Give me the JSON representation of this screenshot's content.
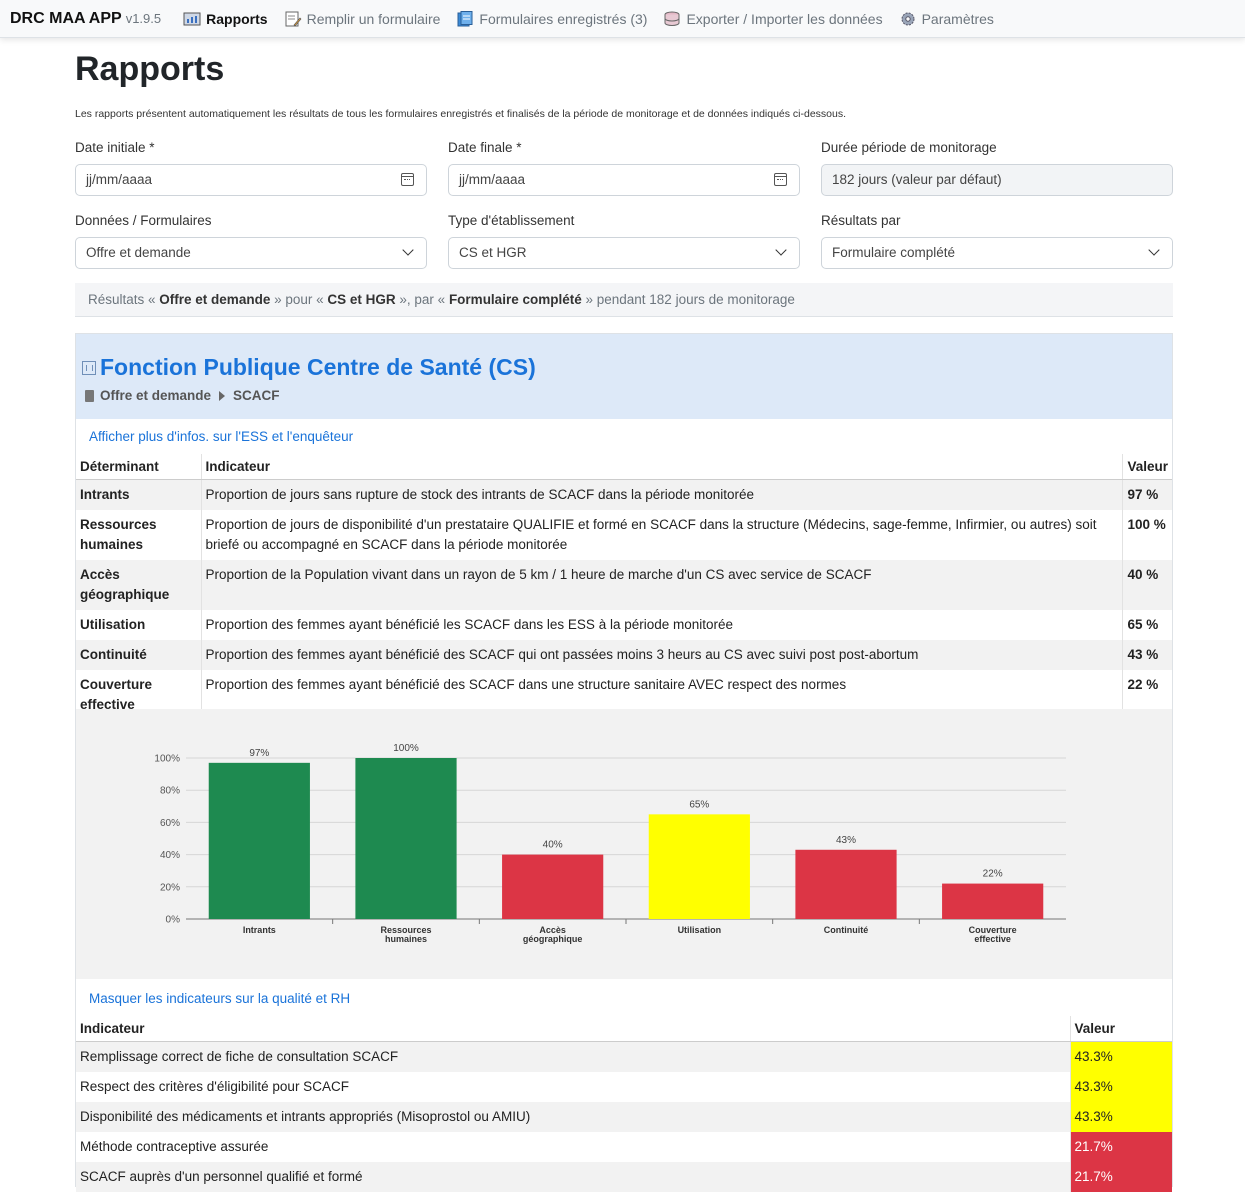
{
  "app": {
    "name": "DRC MAA APP",
    "version": "v1.9.5"
  },
  "nav": [
    {
      "label": "Rapports",
      "icon": "report-icon",
      "active": true
    },
    {
      "label": "Remplir un formulaire",
      "icon": "form-edit-icon",
      "active": false
    },
    {
      "label": "Formulaires enregistrés (3)",
      "icon": "saved-forms-icon",
      "active": false
    },
    {
      "label": "Exporter / Importer les données",
      "icon": "database-icon",
      "active": false
    },
    {
      "label": "Paramètres",
      "icon": "gear-icon",
      "active": false
    }
  ],
  "page": {
    "title": "Rapports",
    "intro": "Les rapports présentent automatiquement les résultats de tous les formulaires enregistrés et finalisés de la période de monitorage et de données indiqués ci-dessous."
  },
  "filters": {
    "date_start": {
      "label": "Date initiale *",
      "placeholder": "jj/mm/aaaa"
    },
    "date_end": {
      "label": "Date finale *",
      "placeholder": "jj/mm/aaaa"
    },
    "duration": {
      "label": "Durée période de monitorage",
      "value": "182 jours (valeur par défaut)"
    },
    "data": {
      "label": "Données / Formulaires",
      "value": "Offre et demande"
    },
    "type": {
      "label": "Type d'établissement",
      "value": "CS et HGR"
    },
    "results_by": {
      "label": "Résultats par",
      "value": "Formulaire complété"
    }
  },
  "summary": {
    "p1": "Résultats « ",
    "b1": "Offre et demande",
    "p2": " » pour « ",
    "b2": "CS et HGR",
    "p3": " », par « ",
    "b3": "Formulaire complété",
    "p4": " » pendant 182 jours de monitorage"
  },
  "panel": {
    "title": "Fonction Publique Centre de Santé (CS)",
    "breadcrumb_1": "Offre et demande",
    "breadcrumb_2": "SCACF",
    "more_info_link": "Afficher plus d'infos. sur l'ESS et l'enquêteur",
    "quality_link": "Masquer les indicateurs sur la qualité et RH"
  },
  "indicators": {
    "headers": {
      "det": "Déterminant",
      "ind": "Indicateur",
      "val": "Valeur"
    },
    "rows": [
      {
        "det": "Intrants",
        "ind": "Proportion de jours sans rupture de stock des intrants de SCACF dans la période monitorée",
        "val": "97 %"
      },
      {
        "det": "Ressources humaines",
        "ind": "Proportion de jours de disponibilité d'un prestataire QUALIFIE et formé en SCACF dans la structure (Médecins, sage-femme, Infirmier, ou autres) soit briefé ou accompagné en SCACF dans la période monitorée",
        "val": "100 %"
      },
      {
        "det": "Accès géographique",
        "ind": "Proportion de la Population vivant dans un rayon de 5 km / 1 heure de marche d'un CS avec service de SCACF",
        "val": "40 %"
      },
      {
        "det": "Utilisation",
        "ind": "Proportion des femmes ayant bénéficié les SCACF dans les ESS à la période monitorée",
        "val": "65 %"
      },
      {
        "det": "Continuité",
        "ind": "Proportion des femmes ayant bénéficié des SCACF qui ont passées moins 3 heurs au CS avec suivi post post-abortum",
        "val": "43 %"
      },
      {
        "det": "Couverture effective",
        "ind": "Proportion des femmes ayant bénéficié des SCACF dans une structure sanitaire AVEC respect des normes",
        "val": "22 %"
      }
    ]
  },
  "chart_data": {
    "type": "bar",
    "categories": [
      "Intrants",
      "Ressources humaines",
      "Accès géographique",
      "Utilisation",
      "Continuité",
      "Couverture effective"
    ],
    "category_lines": [
      [
        "Intrants"
      ],
      [
        "Ressources",
        "humaines"
      ],
      [
        "Accès",
        "géographique"
      ],
      [
        "Utilisation"
      ],
      [
        "Continuité"
      ],
      [
        "Couverture",
        "effective"
      ]
    ],
    "values": [
      97,
      100,
      40,
      65,
      43,
      22
    ],
    "data_labels": [
      "97%",
      "100%",
      "40%",
      "65%",
      "43%",
      "22%"
    ],
    "bar_colors": [
      "#1e8a50",
      "#1e8a50",
      "#dc3545",
      "#ffff00",
      "#dc3545",
      "#dc3545"
    ],
    "ylim": [
      0,
      100
    ],
    "yticks": [
      0,
      20,
      40,
      60,
      80,
      100
    ],
    "ytick_labels": [
      "0%",
      "20%",
      "40%",
      "60%",
      "80%",
      "100%"
    ],
    "grid": true,
    "title": "",
    "xlabel": "",
    "ylabel": ""
  },
  "quality": {
    "headers": {
      "ind": "Indicateur",
      "val": "Valeur"
    },
    "rows": [
      {
        "ind": "Remplissage correct de fiche de consultation SCACF",
        "val": "43.3%",
        "color": "#ffff00"
      },
      {
        "ind": "Respect des critères d'éligibilité pour SCACF",
        "val": "43.3%",
        "color": "#ffff00"
      },
      {
        "ind": "Disponibilité des médicaments et intrants appropriés (Misoprostol ou AMIU)",
        "val": "43.3%",
        "color": "#ffff00"
      },
      {
        "ind": "Méthode contraceptive assurée",
        "val": "21.7%",
        "color": "#dc3545"
      },
      {
        "ind": "SCACF auprès d'un personnel qualifié et formé",
        "val": "21.7%",
        "color": "#dc3545"
      }
    ]
  }
}
